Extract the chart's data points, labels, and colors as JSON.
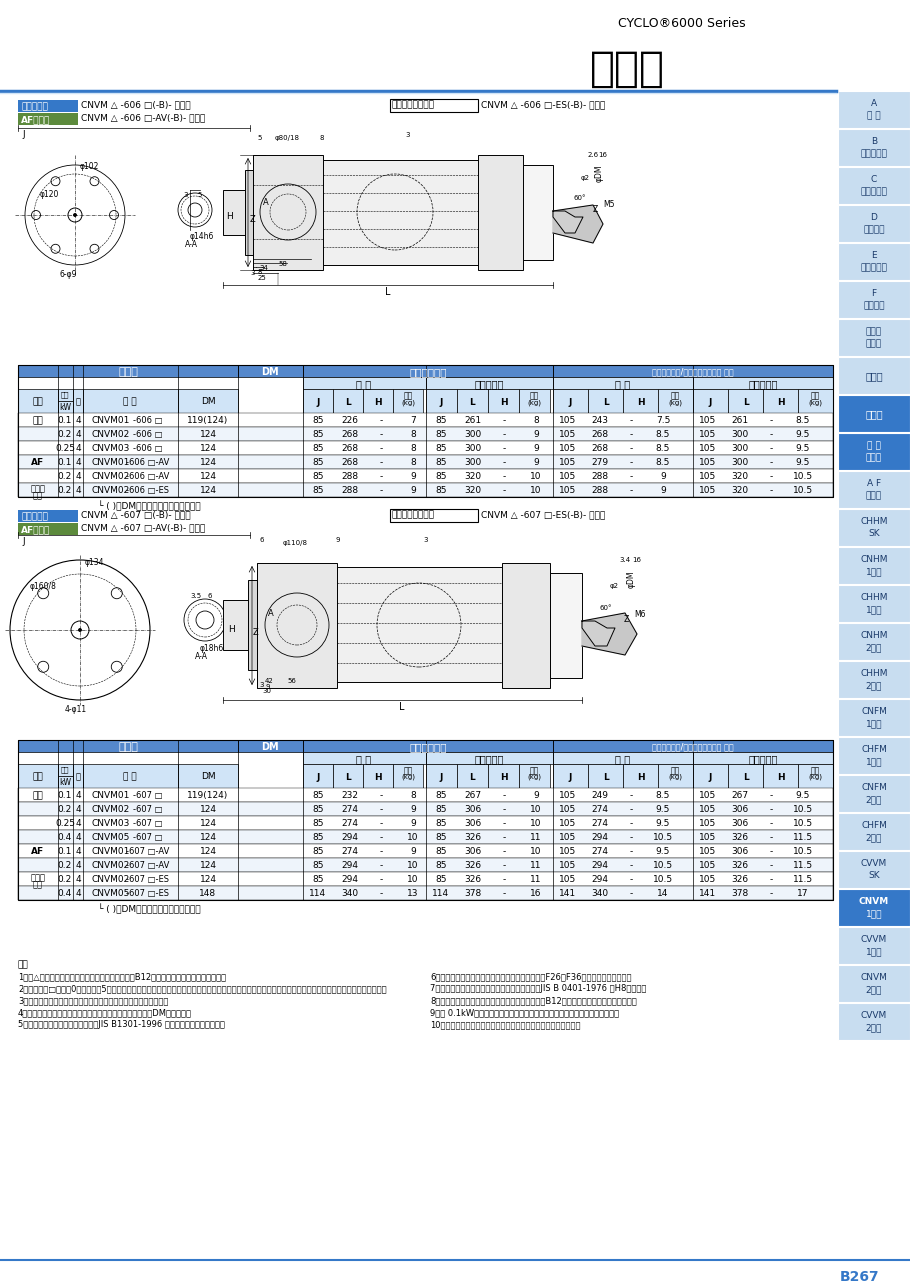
{
  "page_bg": "#ffffff",
  "title_cyclo": "CYCLO®6000 Series",
  "title_main": "寸法図",
  "page_number": "B267",
  "sidebar_items": [
    {
      "label": "A\n共 通",
      "h": false
    },
    {
      "label": "B\nギヤモータ",
      "h": false
    },
    {
      "label": "C\nレデューサ",
      "h": false
    },
    {
      "label": "D\n応用製品",
      "h": false
    },
    {
      "label": "E\nオプション",
      "h": false
    },
    {
      "label": "F\n技術資料",
      "h": false
    },
    {
      "label": "選定に\nついて",
      "h": false
    },
    {
      "label": "選定表",
      "h": false
    },
    {
      "label": "寸法図",
      "h": true
    },
    {
      "label": "三 相\nモータ",
      "h": true
    },
    {
      "label": "A F\nモータ",
      "h": false
    },
    {
      "label": "CHHM\nSK",
      "h": false
    },
    {
      "label": "CNHM\n1段形",
      "h": false
    },
    {
      "label": "CHHM\n1段形",
      "h": false
    },
    {
      "label": "CNHM\n2段形",
      "h": false
    },
    {
      "label": "CHHM\n2段形",
      "h": false
    },
    {
      "label": "CNFM\n1段形",
      "h": false
    },
    {
      "label": "CHFM\n1段形",
      "h": false
    },
    {
      "label": "CNFM\n2段形",
      "h": false
    },
    {
      "label": "CHFM\n2段形",
      "h": false
    },
    {
      "label": "CVVM\nSK",
      "h": false
    },
    {
      "label": "CNVM\n1段形",
      "h": true
    },
    {
      "label": "CVVM\n1段形",
      "h": false
    },
    {
      "label": "CNVM\n2段形",
      "h": false
    },
    {
      "label": "CVVM\n2段形",
      "h": false
    }
  ],
  "s1_lbl1": "三相モータ",
  "s1_lbl2": "AFモータ",
  "s1_txt1": "CNVM △ -606 □(-B)- 減速比",
  "s1_txt2": "CNVM △ -606 □-AV(-B)- 減速比",
  "s1_lbl3": "高効率三相モータ",
  "s1_txt3": "CNVM △ -606 □-ES(-B)- 減速比",
  "s2_lbl1": "三相モータ",
  "s2_lbl2": "AFモータ",
  "s2_txt1": "CNVM △ -607 □(-B)- 減速比",
  "s2_txt2": "CNVM △ -607 □-AV(-B)- 減速比",
  "s2_lbl3": "高効率三相モータ",
  "s2_txt3": "CNVM △ -607 □-ES(-B)- 減速比",
  "hdr_motor": "モータ",
  "hdr_indoor": "屋内形モータ",
  "hdr_outdoor": "屋外形モータ/安全増循形モータ 注３",
  "hdr_std": "標 準",
  "hdr_brk": "ブレーキ付",
  "col_type": "種類",
  "col_kw": "容量\nkW",
  "col_pole": "極",
  "col_form": "形 式",
  "col_dm": "DM",
  "t1_rows": [
    [
      "三相",
      "0.1",
      "4",
      "CNVM01",
      "-606 □",
      "119(124)",
      "85",
      "226",
      "-",
      "7",
      "85",
      "261",
      "-",
      "8",
      "105",
      "243",
      "-",
      "7.5",
      "105",
      "261",
      "-",
      "8.5"
    ],
    [
      "",
      "0.2",
      "4",
      "CNVM02",
      "-606 □",
      "124",
      "85",
      "268",
      "-",
      "8",
      "85",
      "300",
      "-",
      "9",
      "105",
      "268",
      "-",
      "8.5",
      "105",
      "300",
      "-",
      "9.5"
    ],
    [
      "",
      "0.25",
      "4",
      "CNVM03",
      "-606 □",
      "124",
      "85",
      "268",
      "-",
      "8",
      "85",
      "300",
      "-",
      "9",
      "105",
      "268",
      "-",
      "8.5",
      "105",
      "300",
      "-",
      "9.5"
    ],
    [
      "AF",
      "0.1",
      "4",
      "CNVM01",
      "-606 □-AV",
      "124",
      "85",
      "268",
      "-",
      "8",
      "85",
      "300",
      "-",
      "9",
      "105",
      "279",
      "-",
      "8.5",
      "105",
      "300",
      "-",
      "9.5"
    ],
    [
      "",
      "0.2",
      "4",
      "CNVM02",
      "-606 □-AV",
      "124",
      "85",
      "288",
      "-",
      "9",
      "85",
      "320",
      "-",
      "10",
      "105",
      "288",
      "-",
      "9",
      "105",
      "320",
      "-",
      "10.5"
    ],
    [
      "高効率\n三相",
      "0.2",
      "4",
      "CNVM02",
      "-606 □-ES",
      "124",
      "85",
      "288",
      "-",
      "9",
      "85",
      "320",
      "-",
      "10",
      "105",
      "288",
      "-",
      "9",
      "105",
      "320",
      "-",
      "10.5"
    ]
  ],
  "t1_note": "( )のDM寸法は、ブレーキ付の場合",
  "t2_rows": [
    [
      "三相",
      "0.1",
      "4",
      "CNVM01",
      "-607 □",
      "119(124)",
      "85",
      "232",
      "-",
      "8",
      "85",
      "267",
      "-",
      "9",
      "105",
      "249",
      "-",
      "8.5",
      "105",
      "267",
      "-",
      "9.5"
    ],
    [
      "",
      "0.2",
      "4",
      "CNVM02",
      "-607 □",
      "124",
      "85",
      "274",
      "-",
      "9",
      "85",
      "306",
      "-",
      "10",
      "105",
      "274",
      "-",
      "9.5",
      "105",
      "306",
      "-",
      "10.5"
    ],
    [
      "",
      "0.25",
      "4",
      "CNVM03",
      "-607 □",
      "124",
      "85",
      "274",
      "-",
      "9",
      "85",
      "306",
      "-",
      "10",
      "105",
      "274",
      "-",
      "9.5",
      "105",
      "306",
      "-",
      "10.5"
    ],
    [
      "",
      "0.4",
      "4",
      "CNVM05",
      "-607 □",
      "124",
      "85",
      "294",
      "-",
      "10",
      "85",
      "326",
      "-",
      "11",
      "105",
      "294",
      "-",
      "10.5",
      "105",
      "326",
      "-",
      "11.5"
    ],
    [
      "AF",
      "0.1",
      "4",
      "CNVM01",
      "-607 □-AV",
      "124",
      "85",
      "274",
      "-",
      "9",
      "85",
      "306",
      "-",
      "10",
      "105",
      "274",
      "-",
      "9.5",
      "105",
      "306",
      "-",
      "10.5"
    ],
    [
      "",
      "0.2",
      "4",
      "CNVM02",
      "-607 □-AV",
      "124",
      "85",
      "294",
      "-",
      "10",
      "85",
      "326",
      "-",
      "11",
      "105",
      "294",
      "-",
      "10.5",
      "105",
      "326",
      "-",
      "11.5"
    ],
    [
      "高効率\n三相",
      "0.2",
      "4",
      "CNVM02",
      "-607 □-ES",
      "124",
      "85",
      "294",
      "-",
      "10",
      "85",
      "326",
      "-",
      "11",
      "105",
      "294",
      "-",
      "10.5",
      "105",
      "326",
      "-",
      "11.5"
    ],
    [
      "",
      "0.4",
      "4",
      "CNVM05",
      "-607 □-ES",
      "148",
      "114",
      "340",
      "-",
      "13",
      "114",
      "378",
      "-",
      "16",
      "141",
      "340",
      "-",
      "14",
      "141",
      "378",
      "-",
      "17"
    ]
  ],
  "t2_note": "( )のDM寸法は、ブレーキ付の場合",
  "footnotes_l": [
    "1．　△にはモータの容量記号が入ります。詳細はB12頁の「形式」をご参照ください。",
    "2．　形式の□には「0」または「5」が入ります。詳しくは選定表をご参照ください。ブレーキ付、安全増循形モータの環境性能は（ブレーキ無し）のみです。",
    "3．　安全増循形モータは、三相標準（ブレーキ無し）のみです。",
    "4．　低連軸周り寸法公差は、三相標準（ブレーキ無し）のDM対応のみ。",
    "5．　低連軸キー対応寸法公差は、JIS B1301-1996 平行キーに従っています。"
  ],
  "footnotes_r": [
    "6．　出力軸端タップ穴の詳細寸法は、技術資料のF26，F36頁をご参照ください。",
    "7．　フランジ接続部インロー径の寸法公差は、JIS B 0401-1976 「H8」です。",
    "8．　形式の（）はブレーキ付の場合に付きます。B12頁の「形式」をご参照ください。",
    "9．　 0.1kWの三相モータは全閉自冷形のため、ファンカバーが付きません。",
    "10．　本寸法図の寸法は、予告なしに変更することがあります。"
  ],
  "c_blue": "#3578c8",
  "c_blue_lt": "#d0e4f7",
  "c_blue_sb": "#c8ddf0",
  "c_tbl_hdr": "#5588cc",
  "c_green": "#5c8a3c",
  "c_note_hdr": "#6699cc"
}
